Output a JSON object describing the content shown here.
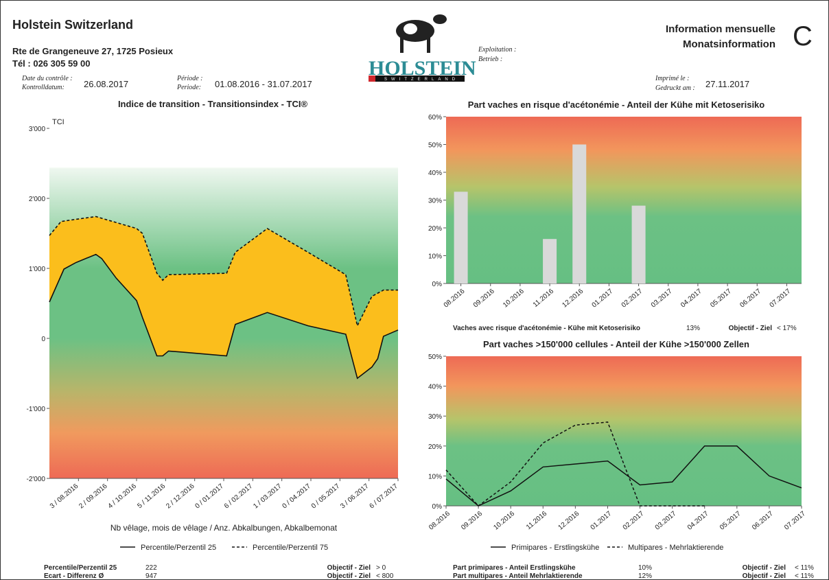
{
  "header": {
    "org": "Holstein Switzerland",
    "address": "Rte de Grangeneuve 27, 1725 Posieux",
    "phone": "Tél : 026 305 59 00",
    "control_label_fr": "Date du contrôle :",
    "control_label_de": "Kontrolldatum:",
    "control_date": "26.08.2017",
    "period_label_fr": "Période :",
    "period_label_de": "Periode:",
    "period": "01.08.2016 - 31.07.2017",
    "logo": "HOLSTEIN",
    "logo_sub": "SWITZERLAND",
    "farm_label_fr": "Exploitation :",
    "farm_label_de": "Betrieb :",
    "info_fr": "Information mensuelle",
    "info_de": "Monatsinformation",
    "letter": "C",
    "printed_label_fr": "Imprimé le :",
    "printed_label_de": "Gedruckt am :",
    "printed": "27.11.2017"
  },
  "chart_data": [
    {
      "type": "area",
      "title": "Indice de transition - Transitionsindex - TCI®",
      "ylabel": "TCI",
      "xlabel": "Nb vêlage, mois de vêlage / Anz. Abkalbungen, Abkalbemonat",
      "xlim": [
        0,
        12
      ],
      "xticks": [
        {
          "value": 1,
          "label": "3 / 08.2016"
        },
        {
          "value": 2,
          "label": "2 / 09.2016"
        },
        {
          "value": 3,
          "label": "4 / 10.2016"
        },
        {
          "value": 4,
          "label": "5 / 11.2016"
        },
        {
          "value": 5,
          "label": "2 / 12.2016"
        },
        {
          "value": 6,
          "label": "0 / 01.2017"
        },
        {
          "value": 7,
          "label": "6 / 02.2017"
        },
        {
          "value": 8,
          "label": "1 / 03.2017"
        },
        {
          "value": 9,
          "label": "0 / 04.2017"
        },
        {
          "value": 10,
          "label": "0 / 05.2017"
        },
        {
          "value": 11,
          "label": "3 / 06.2017"
        },
        {
          "value": 12,
          "label": "6 / 07.2017"
        }
      ],
      "ylim": [
        -2000,
        3000
      ],
      "yticks": [
        {
          "value": 3000,
          "label": "3'000"
        },
        {
          "value": 2000,
          "label": "2'000"
        },
        {
          "value": 1000,
          "label": "1'000"
        },
        0,
        {
          "value": -1000,
          "label": "-1'000"
        },
        {
          "value": -2000,
          "label": "-2'000"
        }
      ],
      "fill": "#fbbe1c",
      "series": [
        {
          "name": "Percentile/Perzentil 25",
          "color": "#111111",
          "linestyle": "solid",
          "x": [
            0,
            0.5,
            0.9,
            1.6,
            1.8,
            2.3,
            3.0,
            3.2,
            3.7,
            3.9,
            4.1,
            4.7,
            6.1,
            6.4,
            7.5,
            8.9,
            10.2,
            10.6,
            11.1,
            11.3,
            11.5,
            12
          ],
          "values": [
            520,
            990,
            1080,
            1200,
            1140,
            860,
            540,
            300,
            -250,
            -250,
            -180,
            -200,
            -250,
            200,
            370,
            180,
            60,
            -570,
            -410,
            -290,
            30,
            120
          ]
        },
        {
          "name": "Percentile/Perzentil 75",
          "color": "#111111",
          "linestyle": "dashed",
          "x": [
            0,
            0.4,
            0.9,
            1.6,
            3.0,
            3.2,
            3.7,
            3.9,
            4.1,
            6.1,
            6.4,
            7.5,
            8.9,
            10.2,
            10.6,
            11.1,
            11.5,
            12
          ],
          "values": [
            1470,
            1670,
            1700,
            1740,
            1570,
            1500,
            930,
            830,
            910,
            930,
            1230,
            1570,
            1230,
            910,
            180,
            600,
            690,
            690
          ]
        }
      ]
    },
    {
      "type": "bar",
      "title": "Part vaches en risque d'acétonémie - Anteil der Kühe mit Ketoserisiko",
      "categories": [
        "08.2016",
        "09.2016",
        "10.2016",
        "11.2016",
        "12.2016",
        "01.2017",
        "02.2017",
        "03.2017",
        "04.2017",
        "05.2017",
        "06.2017",
        "07.2017"
      ],
      "values": [
        33,
        null,
        null,
        16,
        50,
        null,
        28,
        null,
        null,
        null,
        null,
        null
      ],
      "color": "#d9d9d9",
      "ylim": [
        0,
        60
      ],
      "yticks": [
        {
          "value": 0,
          "label": "0%"
        },
        {
          "value": 10,
          "label": "10%"
        },
        {
          "value": 20,
          "label": "20%"
        },
        {
          "value": 30,
          "label": "30%"
        },
        {
          "value": 40,
          "label": "40%"
        },
        {
          "value": 50,
          "label": "50%"
        },
        {
          "value": 60,
          "label": "60%"
        }
      ]
    },
    {
      "type": "line",
      "title": "Part vaches >150'000 cellules - Anteil der Kühe >150'000 Zellen",
      "categories": [
        "08.2016",
        "09.2016",
        "10.2016",
        "11.2016",
        "12.2016",
        "01.2017",
        "02.2017",
        "03.2017",
        "04.2017",
        "05.2017",
        "06.2017",
        "07.2017"
      ],
      "ylim": [
        0,
        50
      ],
      "yticks": [
        {
          "value": 0,
          "label": "0%"
        },
        {
          "value": 10,
          "label": "10%"
        },
        {
          "value": 20,
          "label": "20%"
        },
        {
          "value": 30,
          "label": "30%"
        },
        {
          "value": 40,
          "label": "40%"
        },
        {
          "value": 50,
          "label": "50%"
        }
      ],
      "series": [
        {
          "name": "Primipares - Erstlingskühe",
          "color": "#111111",
          "linestyle": "solid",
          "values": [
            9,
            0,
            5,
            13,
            14,
            15,
            7,
            8,
            20,
            20,
            10,
            6
          ]
        },
        {
          "name": "Multipares - Mehrlaktierende",
          "color": "#111111",
          "linestyle": "dashed",
          "values": [
            12,
            0,
            8,
            21,
            27,
            28,
            0,
            0,
            0,
            null,
            null,
            null
          ]
        }
      ]
    }
  ],
  "summary": {
    "tci": [
      [
        "Percentile/Perzentil 25",
        222,
        "Objectif - Ziel",
        "> 0"
      ],
      [
        "Ecart - Differenz Ø",
        947,
        "Objectif - Ziel",
        "< 800"
      ]
    ],
    "keto": [
      [
        "Vaches avec risque d'acétonémie - Kühe mit Ketoserisiko",
        "13%",
        "Objectif - Ziel",
        "< 17%"
      ]
    ],
    "cells": [
      [
        "Part primipares - Anteil Erstlingskühe",
        "10%",
        "Objectif - Ziel",
        "< 11%"
      ],
      [
        "Part multipares - Anteil Mehrlaktierende",
        "12%",
        "Objectif - Ziel",
        "< 11%"
      ]
    ]
  }
}
